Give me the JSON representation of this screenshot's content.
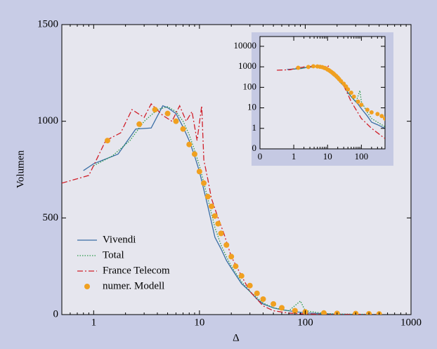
{
  "chart_data": {
    "type": "line",
    "xlabel": "Δ",
    "ylabel": "Volumen",
    "xscale": "log",
    "yscale": "linear",
    "xlim": [
      0.5,
      1000
    ],
    "ylim": [
      0,
      1500
    ],
    "xticks": [
      1,
      10,
      100,
      1000
    ],
    "yticks": [
      0,
      500,
      1000,
      1500
    ],
    "legend": "lower left",
    "series": [
      {
        "name": "Vivendi",
        "color": "#3a6ea5",
        "dash": "solid",
        "x": [
          0.8,
          1.0,
          1.7,
          2.5,
          3.5,
          4.5,
          5,
          6,
          7,
          8,
          9,
          10,
          12,
          14,
          16,
          18,
          20,
          25,
          30,
          35,
          40,
          50,
          60,
          80,
          100,
          150,
          200,
          300,
          500
        ],
        "values": [
          745,
          780,
          830,
          960,
          965,
          1080,
          1070,
          1040,
          970,
          900,
          820,
          740,
          560,
          400,
          340,
          280,
          240,
          160,
          120,
          80,
          55,
          35,
          25,
          15,
          9,
          4,
          2,
          1.5,
          1
        ]
      },
      {
        "name": "Total",
        "color": "#2a9a4a",
        "dash": "dotted",
        "x": [
          1.0,
          1.5,
          2.2,
          3,
          4,
          5,
          6,
          7,
          8,
          9,
          10,
          12,
          14,
          16,
          18,
          20,
          25,
          30,
          40,
          50,
          70,
          90,
          100,
          150,
          200,
          300,
          500
        ],
        "values": [
          770,
          820,
          900,
          1000,
          1060,
          1075,
          1050,
          1000,
          930,
          850,
          770,
          600,
          450,
          360,
          300,
          250,
          170,
          120,
          60,
          35,
          20,
          70,
          20,
          6,
          3,
          2,
          1.2
        ]
      },
      {
        "name": "France Telecom",
        "color": "#d0202a",
        "dash": "dashdot",
        "x": [
          0.5,
          0.9,
          1.3,
          1.8,
          2.3,
          3,
          3.5,
          4.5,
          5.5,
          6.5,
          7.5,
          8.5,
          9.5,
          10.5,
          11,
          12,
          13,
          15,
          17,
          20,
          25,
          30,
          40,
          50,
          70,
          100,
          200,
          500
        ],
        "values": [
          680,
          720,
          900,
          940,
          1060,
          1020,
          1090,
          1030,
          1000,
          1080,
          1000,
          1050,
          900,
          1080,
          800,
          700,
          600,
          500,
          420,
          300,
          200,
          120,
          45,
          20,
          8,
          3,
          1,
          0.5
        ]
      },
      {
        "name": "numer. Modell",
        "color": "#f0a020",
        "marker": "circle",
        "x": [
          1.35,
          2.7,
          3.8,
          5,
          6,
          7,
          8,
          9,
          10,
          11,
          12,
          13,
          14,
          15,
          16,
          18,
          20,
          22,
          25,
          30,
          35,
          40,
          50,
          60,
          80,
          100,
          150,
          200,
          300,
          400,
          500
        ],
        "values": [
          900,
          985,
          1060,
          1040,
          1000,
          960,
          880,
          830,
          740,
          680,
          610,
          560,
          510,
          470,
          420,
          360,
          300,
          250,
          200,
          150,
          110,
          80,
          55,
          35,
          20,
          14,
          8,
          6,
          5,
          4,
          3
        ]
      }
    ],
    "inset": {
      "xscale": "symlog",
      "yscale": "symlog",
      "xlim": [
        0,
        500
      ],
      "ylim": [
        0,
        30000
      ],
      "xticks": [
        0,
        1,
        10,
        100
      ],
      "yticks": [
        0,
        1,
        10,
        100,
        1000,
        10000
      ]
    }
  }
}
